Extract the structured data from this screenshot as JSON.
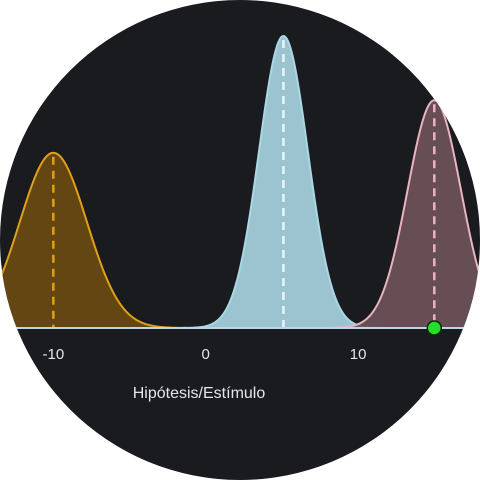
{
  "chart_data": {
    "type": "area",
    "xlabel": "Hipótesis/Estímulo",
    "ylabel": "",
    "xlim": [
      -13.5,
      18
    ],
    "ylim": [
      0,
      1
    ],
    "x_ticks": [
      -10,
      0,
      10
    ],
    "grid": false,
    "series": [
      {
        "kind": "hypothesis",
        "mean": -10,
        "sd": 2.2,
        "peak": 0.6,
        "stroke": "#e0a018",
        "fill": "#6a4a12"
      },
      {
        "kind": "hypothesis",
        "mean": 5.1,
        "sd": 1.6,
        "peak": 1.0,
        "stroke": "#a9d8e4",
        "fill": "#a7d3df"
      },
      {
        "kind": "hypothesis",
        "mean": 15,
        "sd": 1.75,
        "peak": 0.78,
        "stroke": "#eab3c2",
        "fill": "#6c5259"
      }
    ],
    "stimulus": {
      "x": 15,
      "color": "#22e02a"
    },
    "baseline_color": "#b8d8e6"
  }
}
